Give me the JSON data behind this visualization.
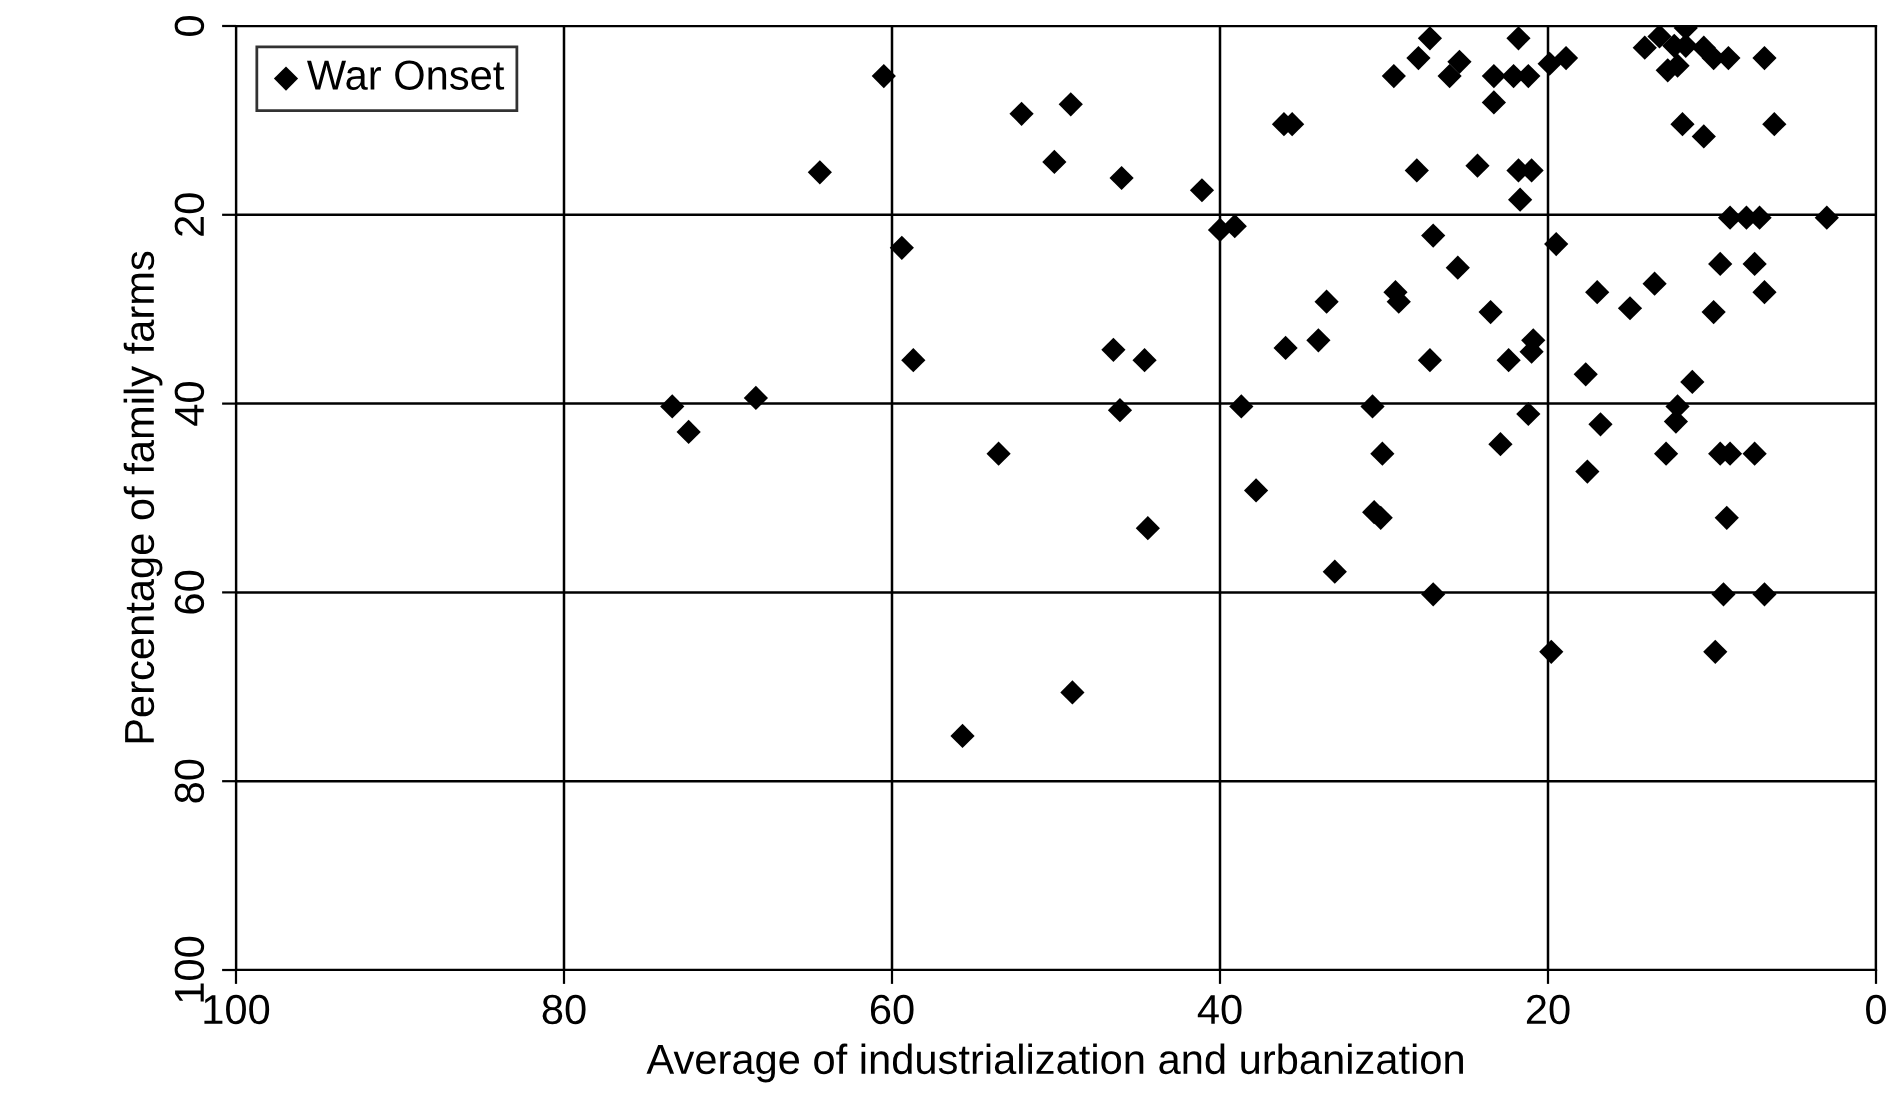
{
  "chart_data": {
    "type": "scatter",
    "xlabel": "Average of industrialization and urbanization",
    "ylabel": "Percentage of family farms",
    "xlim": [
      100,
      0
    ],
    "ylim": [
      100,
      0
    ],
    "xticks": [
      100,
      80,
      60,
      40,
      20,
      0
    ],
    "yticks": [
      100,
      80,
      60,
      40,
      20,
      0
    ],
    "grid": true,
    "legend": "top left",
    "marker": "diamond",
    "series": [
      {
        "name": "War Onset",
        "color": "#000000",
        "x": [
          73.4,
          72.4,
          68.3,
          64.4,
          60.5,
          59.4,
          58.7,
          53.5,
          55.7,
          49.0,
          52.1,
          49.1,
          50.1,
          46.0,
          41.1,
          46.5,
          44.6,
          46.1,
          44.4,
          40.0,
          39.1,
          27.2,
          21.8,
          27.9,
          25.4,
          29.4,
          26.0,
          23.3,
          22.1,
          21.2,
          19.9,
          18.9,
          23.3,
          36.1,
          35.6,
          28.0,
          24.3,
          21.8,
          21.0,
          21.7,
          27.0,
          19.5,
          25.5,
          33.5,
          29.3,
          29.1,
          23.5,
          17.0,
          15.0,
          13.5,
          9.9,
          9.5,
          7.4,
          6.8,
          36.0,
          34.0,
          27.2,
          22.4,
          20.9,
          21.0,
          17.7,
          11.2,
          38.7,
          30.7,
          21.2,
          16.8,
          12.1,
          12.2,
          30.1,
          22.9,
          12.8,
          9.5,
          8.9,
          7.4,
          17.6,
          37.8,
          30.6,
          30.2,
          9.1,
          33.0,
          27.0,
          9.3,
          6.8,
          14.1,
          13.2,
          11.6,
          12.3,
          11.6,
          10.5,
          9.9,
          9.0,
          6.8,
          12.7,
          12.1,
          11.8,
          10.5,
          6.2,
          8.9,
          7.9,
          7.1,
          3.0,
          19.8,
          9.8
        ],
        "values": [
          40.3,
          43.0,
          39.4,
          15.5,
          5.3,
          23.5,
          35.4,
          45.3,
          75.2,
          70.6,
          9.3,
          8.3,
          14.4,
          16.1,
          17.4,
          34.3,
          35.4,
          40.7,
          53.2,
          21.6,
          21.2,
          1.3,
          1.3,
          3.4,
          3.8,
          5.3,
          5.3,
          5.3,
          5.3,
          5.3,
          4.0,
          3.4,
          8.1,
          10.4,
          10.4,
          15.3,
          14.8,
          15.3,
          15.3,
          18.4,
          22.2,
          23.1,
          25.6,
          29.2,
          28.2,
          29.2,
          30.3,
          28.2,
          29.9,
          27.3,
          30.3,
          25.2,
          25.2,
          28.2,
          34.1,
          33.3,
          35.4,
          35.4,
          33.3,
          34.5,
          36.9,
          37.7,
          40.3,
          40.3,
          41.1,
          42.2,
          40.3,
          41.9,
          45.3,
          44.3,
          45.3,
          45.3,
          45.3,
          45.3,
          47.2,
          49.2,
          51.5,
          52.1,
          52.1,
          57.8,
          60.2,
          60.2,
          60.2,
          2.3,
          1.1,
          0.2,
          2.1,
          2.1,
          2.3,
          3.4,
          3.4,
          3.4,
          4.7,
          4.2,
          10.4,
          11.7,
          10.4,
          20.3,
          20.3,
          20.3,
          20.3,
          66.3,
          66.3
        ]
      }
    ]
  }
}
